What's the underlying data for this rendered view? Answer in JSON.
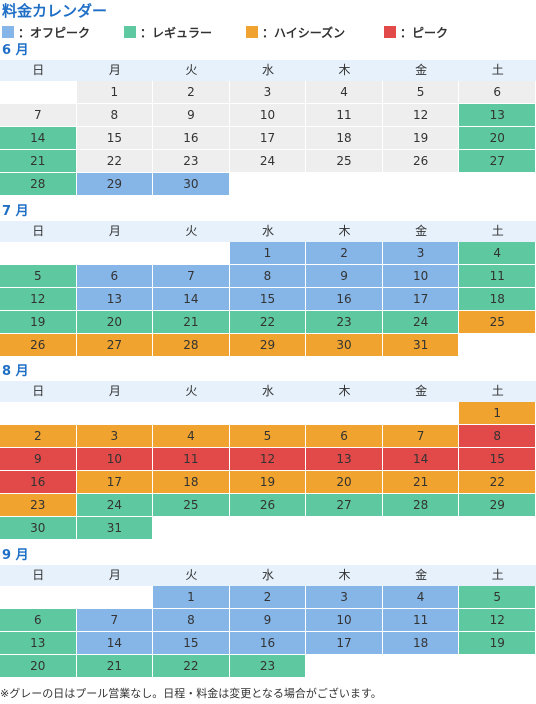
{
  "title": "料金カレンダー",
  "legend": [
    {
      "label": "：オフピーク",
      "color": "#86b6e8"
    },
    {
      "label": "：レギュラー",
      "color": "#5ec9a0"
    },
    {
      "label": "：ハイシーズン",
      "color": "#f0a32e"
    },
    {
      "label": "：ピーク",
      "color": "#e24a4a"
    }
  ],
  "weekdays": [
    "日",
    "月",
    "火",
    "水",
    "木",
    "金",
    "土"
  ],
  "colors": {
    "gray": "#eeeeee",
    "off": "#86b6e8",
    "reg": "#5ec9a0",
    "high": "#f0a32e",
    "peak": "#e24a4a",
    "none": "#ffffff"
  },
  "months": [
    {
      "name": "6 月",
      "weeks": [
        [
          null,
          {
            "d": "1",
            "c": "gray"
          },
          {
            "d": "2",
            "c": "gray"
          },
          {
            "d": "3",
            "c": "gray"
          },
          {
            "d": "4",
            "c": "gray"
          },
          {
            "d": "5",
            "c": "gray"
          },
          {
            "d": "6",
            "c": "gray"
          }
        ],
        [
          {
            "d": "7",
            "c": "gray"
          },
          {
            "d": "8",
            "c": "gray"
          },
          {
            "d": "9",
            "c": "gray"
          },
          {
            "d": "10",
            "c": "gray"
          },
          {
            "d": "11",
            "c": "gray"
          },
          {
            "d": "12",
            "c": "gray"
          },
          {
            "d": "13",
            "c": "reg"
          }
        ],
        [
          {
            "d": "14",
            "c": "reg"
          },
          {
            "d": "15",
            "c": "gray"
          },
          {
            "d": "16",
            "c": "gray"
          },
          {
            "d": "17",
            "c": "gray"
          },
          {
            "d": "18",
            "c": "gray"
          },
          {
            "d": "19",
            "c": "gray"
          },
          {
            "d": "20",
            "c": "reg"
          }
        ],
        [
          {
            "d": "21",
            "c": "reg"
          },
          {
            "d": "22",
            "c": "gray"
          },
          {
            "d": "23",
            "c": "gray"
          },
          {
            "d": "24",
            "c": "gray"
          },
          {
            "d": "25",
            "c": "gray"
          },
          {
            "d": "26",
            "c": "gray"
          },
          {
            "d": "27",
            "c": "reg"
          }
        ],
        [
          {
            "d": "28",
            "c": "reg"
          },
          {
            "d": "29",
            "c": "off"
          },
          {
            "d": "30",
            "c": "off"
          },
          null,
          null,
          null,
          null
        ]
      ]
    },
    {
      "name": "7 月",
      "weeks": [
        [
          null,
          null,
          null,
          {
            "d": "1",
            "c": "off"
          },
          {
            "d": "2",
            "c": "off"
          },
          {
            "d": "3",
            "c": "off"
          },
          {
            "d": "4",
            "c": "reg"
          }
        ],
        [
          {
            "d": "5",
            "c": "reg"
          },
          {
            "d": "6",
            "c": "off"
          },
          {
            "d": "7",
            "c": "off"
          },
          {
            "d": "8",
            "c": "off"
          },
          {
            "d": "9",
            "c": "off"
          },
          {
            "d": "10",
            "c": "off"
          },
          {
            "d": "11",
            "c": "reg"
          }
        ],
        [
          {
            "d": "12",
            "c": "reg"
          },
          {
            "d": "13",
            "c": "off"
          },
          {
            "d": "14",
            "c": "off"
          },
          {
            "d": "15",
            "c": "off"
          },
          {
            "d": "16",
            "c": "off"
          },
          {
            "d": "17",
            "c": "off"
          },
          {
            "d": "18",
            "c": "reg"
          }
        ],
        [
          {
            "d": "19",
            "c": "reg"
          },
          {
            "d": "20",
            "c": "reg"
          },
          {
            "d": "21",
            "c": "reg"
          },
          {
            "d": "22",
            "c": "reg"
          },
          {
            "d": "23",
            "c": "reg"
          },
          {
            "d": "24",
            "c": "reg"
          },
          {
            "d": "25",
            "c": "high"
          }
        ],
        [
          {
            "d": "26",
            "c": "high"
          },
          {
            "d": "27",
            "c": "high"
          },
          {
            "d": "28",
            "c": "high"
          },
          {
            "d": "29",
            "c": "high"
          },
          {
            "d": "30",
            "c": "high"
          },
          {
            "d": "31",
            "c": "high"
          },
          null
        ]
      ]
    },
    {
      "name": "8 月",
      "weeks": [
        [
          null,
          null,
          null,
          null,
          null,
          null,
          {
            "d": "1",
            "c": "high"
          }
        ],
        [
          {
            "d": "2",
            "c": "high"
          },
          {
            "d": "3",
            "c": "high"
          },
          {
            "d": "4",
            "c": "high"
          },
          {
            "d": "5",
            "c": "high"
          },
          {
            "d": "6",
            "c": "high"
          },
          {
            "d": "7",
            "c": "high"
          },
          {
            "d": "8",
            "c": "peak"
          }
        ],
        [
          {
            "d": "9",
            "c": "peak"
          },
          {
            "d": "10",
            "c": "peak"
          },
          {
            "d": "11",
            "c": "peak"
          },
          {
            "d": "12",
            "c": "peak"
          },
          {
            "d": "13",
            "c": "peak"
          },
          {
            "d": "14",
            "c": "peak"
          },
          {
            "d": "15",
            "c": "peak"
          }
        ],
        [
          {
            "d": "16",
            "c": "peak"
          },
          {
            "d": "17",
            "c": "high"
          },
          {
            "d": "18",
            "c": "high"
          },
          {
            "d": "19",
            "c": "high"
          },
          {
            "d": "20",
            "c": "high"
          },
          {
            "d": "21",
            "c": "high"
          },
          {
            "d": "22",
            "c": "high"
          }
        ],
        [
          {
            "d": "23",
            "c": "high"
          },
          {
            "d": "24",
            "c": "reg"
          },
          {
            "d": "25",
            "c": "reg"
          },
          {
            "d": "26",
            "c": "reg"
          },
          {
            "d": "27",
            "c": "reg"
          },
          {
            "d": "28",
            "c": "reg"
          },
          {
            "d": "29",
            "c": "reg"
          }
        ],
        [
          {
            "d": "30",
            "c": "reg"
          },
          {
            "d": "31",
            "c": "reg"
          },
          null,
          null,
          null,
          null,
          null
        ]
      ]
    },
    {
      "name": "9 月",
      "weeks": [
        [
          null,
          null,
          {
            "d": "1",
            "c": "off"
          },
          {
            "d": "2",
            "c": "off"
          },
          {
            "d": "3",
            "c": "off"
          },
          {
            "d": "4",
            "c": "off"
          },
          {
            "d": "5",
            "c": "reg"
          }
        ],
        [
          {
            "d": "6",
            "c": "reg"
          },
          {
            "d": "7",
            "c": "off"
          },
          {
            "d": "8",
            "c": "off"
          },
          {
            "d": "9",
            "c": "off"
          },
          {
            "d": "10",
            "c": "off"
          },
          {
            "d": "11",
            "c": "off"
          },
          {
            "d": "12",
            "c": "reg"
          }
        ],
        [
          {
            "d": "13",
            "c": "reg"
          },
          {
            "d": "14",
            "c": "off"
          },
          {
            "d": "15",
            "c": "off"
          },
          {
            "d": "16",
            "c": "off"
          },
          {
            "d": "17",
            "c": "off"
          },
          {
            "d": "18",
            "c": "off"
          },
          {
            "d": "19",
            "c": "reg"
          }
        ],
        [
          {
            "d": "20",
            "c": "reg"
          },
          {
            "d": "21",
            "c": "reg"
          },
          {
            "d": "22",
            "c": "reg"
          },
          {
            "d": "23",
            "c": "reg"
          },
          null,
          null,
          null
        ]
      ]
    }
  ],
  "note": "※グレーの日はプール営業なし。日程・料金は変更となる場合がございます。"
}
